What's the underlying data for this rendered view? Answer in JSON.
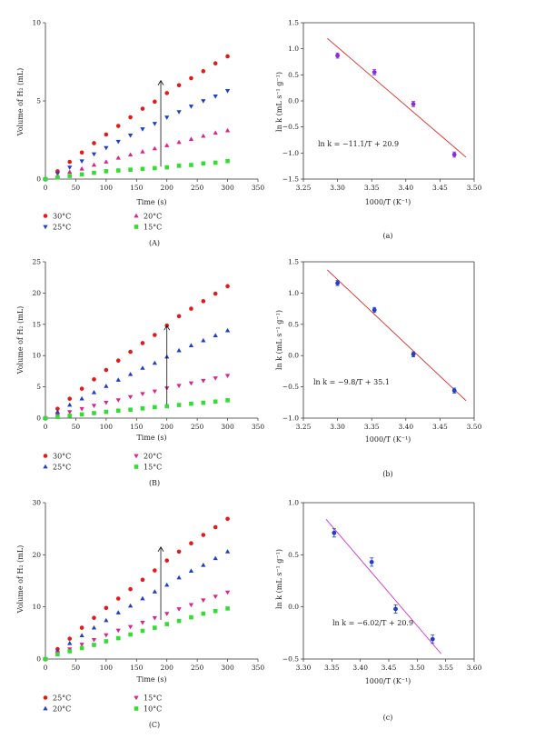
{
  "figure": {
    "panels": [
      {
        "label": "(A)",
        "xlabel": "Time (s)",
        "ylabel": "Volume of H₂ (mL)",
        "xlim": [
          0,
          350
        ],
        "ylim": [
          0,
          10
        ],
        "xticks": [
          "0",
          "50",
          "100",
          "150",
          "200",
          "250",
          "300",
          "350"
        ],
        "yticks": [
          "0",
          "5",
          "10"
        ],
        "arrow": {
          "x": 190,
          "y0": 0.8,
          "y1": 6.3
        }
      },
      {
        "label": "(a)",
        "xlabel": "1000/T (K⁻¹)",
        "ylabel": "ln k (mL s⁻¹ g⁻¹)",
        "equation": "ln k = −11.1/T + 20.9",
        "xlim": [
          3.25,
          3.5
        ],
        "ylim": [
          -1.5,
          1.5
        ],
        "xticks": [
          "3.25",
          "3.30",
          "3.35",
          "3.40",
          "3.45",
          "3.50"
        ],
        "yticks": [
          "−1.5",
          "−1.0",
          "−0.5",
          "0.0",
          "0.5",
          "1.0",
          "1.5"
        ]
      },
      {
        "label": "(B)",
        "xlabel": "Time (s)",
        "ylabel": "Volume of H₂ (mL)",
        "xlim": [
          0,
          350
        ],
        "ylim": [
          0,
          25
        ],
        "xticks": [
          "0",
          "50",
          "100",
          "150",
          "200",
          "250",
          "300",
          "350"
        ],
        "yticks": [
          "0",
          "5",
          "10",
          "15",
          "20",
          "25"
        ],
        "arrow": {
          "x": 200,
          "y0": 2.2,
          "y1": 14.8
        }
      },
      {
        "label": "(b)",
        "xlabel": "1000/T (K⁻¹)",
        "ylabel": "ln k (mL s⁻¹ g⁻¹)",
        "equation": "ln k = −9.8/T + 35.1",
        "xlim": [
          3.25,
          3.5
        ],
        "ylim": [
          -1.0,
          1.5
        ],
        "xticks": [
          "3.25",
          "3.30",
          "3.35",
          "3.40",
          "3.45",
          "3.50"
        ],
        "yticks": [
          "−1.0",
          "−0.5",
          "0.0",
          "0.5",
          "1.0",
          "1.5"
        ]
      },
      {
        "label": "(C)",
        "xlabel": "Time (s)",
        "ylabel": "Volume of H₂ (mL)",
        "xlim": [
          0,
          350
        ],
        "ylim": [
          0,
          30
        ],
        "xticks": [
          "0",
          "50",
          "100",
          "150",
          "200",
          "250",
          "300",
          "350"
        ],
        "yticks": [
          "0",
          "10",
          "20",
          "30"
        ],
        "arrow": {
          "x": 190,
          "y0": 7.5,
          "y1": 21.5
        }
      },
      {
        "label": "(c)",
        "xlabel": "1000/T (K⁻¹)",
        "ylabel": "ln k (mL s⁻¹ g⁻¹)",
        "equation": "ln k = −6.02/T + 20.9",
        "xlim": [
          3.3,
          3.6
        ],
        "ylim": [
          -0.5,
          1.0
        ],
        "xticks": [
          "3.30",
          "3.35",
          "3.40",
          "3.45",
          "3.50",
          "3.55",
          "3.60"
        ],
        "yticks": [
          "−0.5",
          "0.0",
          "0.5",
          "1.0"
        ]
      }
    ]
  },
  "chart_data": [
    {
      "type": "scatter",
      "title": "(A)",
      "xlabel": "Time (s)",
      "ylabel": "Volume of H₂ (mL)",
      "xlim": [
        0,
        350
      ],
      "ylim": [
        0,
        10
      ],
      "legend": "below",
      "x": [
        0,
        20,
        40,
        60,
        80,
        100,
        120,
        140,
        160,
        180,
        200,
        220,
        240,
        260,
        280,
        300
      ],
      "series": [
        {
          "name": "30°C",
          "marker": "circle",
          "color": "#e31a1c",
          "values": [
            0,
            0.5,
            1.1,
            1.7,
            2.3,
            2.85,
            3.4,
            3.95,
            4.5,
            4.95,
            5.5,
            6.0,
            6.45,
            6.9,
            7.4,
            7.85
          ]
        },
        {
          "name": "25°C",
          "marker": "triangle-down",
          "color": "#1f3fc8",
          "values": [
            0,
            0.35,
            0.75,
            1.15,
            1.6,
            2.0,
            2.4,
            2.8,
            3.2,
            3.55,
            3.95,
            4.3,
            4.65,
            5.0,
            5.3,
            5.65
          ]
        },
        {
          "name": "20°C",
          "marker": "triangle-up",
          "color": "#e0218a",
          "values": [
            0,
            0.2,
            0.45,
            0.65,
            0.9,
            1.1,
            1.35,
            1.55,
            1.75,
            1.95,
            2.15,
            2.35,
            2.55,
            2.75,
            2.95,
            3.1
          ]
        },
        {
          "name": "15°C",
          "marker": "square",
          "color": "#33dd33",
          "values": [
            0,
            0.1,
            0.2,
            0.3,
            0.4,
            0.5,
            0.55,
            0.6,
            0.65,
            0.7,
            0.75,
            0.85,
            0.9,
            1.0,
            1.05,
            1.15
          ]
        }
      ]
    },
    {
      "type": "scatter",
      "title": "(a)",
      "xlabel": "1000/T (K⁻¹)",
      "ylabel": "ln k (mL s⁻¹ g⁻¹)",
      "xlim": [
        3.25,
        3.5
      ],
      "ylim": [
        -1.5,
        1.5
      ],
      "annotation": "ln k = −11.1/T + 20.9",
      "points": {
        "x": [
          3.3,
          3.354,
          3.411,
          3.471
        ],
        "y": [
          0.87,
          0.55,
          -0.06,
          -1.03
        ],
        "err": [
          0.05,
          0.05,
          0.05,
          0.05
        ],
        "color": "#8a2be2"
      },
      "fit": {
        "x": [
          3.285,
          3.488
        ],
        "y": [
          1.2,
          -1.08
        ],
        "color": "#d6302a"
      }
    },
    {
      "type": "scatter",
      "title": "(B)",
      "xlabel": "Time (s)",
      "ylabel": "Volume of H₂ (mL)",
      "xlim": [
        0,
        350
      ],
      "ylim": [
        0,
        25
      ],
      "legend": "below",
      "x": [
        0,
        20,
        40,
        60,
        80,
        100,
        120,
        140,
        160,
        180,
        200,
        220,
        240,
        260,
        280,
        300
      ],
      "series": [
        {
          "name": "30°C",
          "marker": "circle",
          "color": "#e31a1c",
          "values": [
            0,
            1.5,
            3.1,
            4.7,
            6.2,
            7.7,
            9.2,
            10.6,
            12.0,
            13.3,
            14.8,
            16.3,
            17.5,
            18.7,
            19.9,
            21.1
          ]
        },
        {
          "name": "25°C",
          "marker": "triangle-up",
          "color": "#1f3fc8",
          "values": [
            0,
            1.0,
            2.1,
            3.1,
            4.1,
            5.1,
            6.1,
            7.0,
            8.0,
            8.8,
            9.8,
            10.8,
            11.6,
            12.4,
            13.2,
            14.0
          ]
        },
        {
          "name": "20°C",
          "marker": "triangle-down",
          "color": "#e0218a",
          "values": [
            0,
            0.5,
            1.0,
            1.5,
            2.0,
            2.5,
            2.9,
            3.4,
            3.9,
            4.3,
            4.8,
            5.2,
            5.6,
            6.0,
            6.4,
            6.8
          ]
        },
        {
          "name": "15°C",
          "marker": "square",
          "color": "#33dd33",
          "values": [
            0,
            0.2,
            0.4,
            0.6,
            0.8,
            1.0,
            1.2,
            1.35,
            1.55,
            1.75,
            1.9,
            2.1,
            2.3,
            2.45,
            2.65,
            2.85
          ]
        }
      ]
    },
    {
      "type": "scatter",
      "title": "(b)",
      "xlabel": "1000/T (K⁻¹)",
      "ylabel": "ln k (mL s⁻¹ g⁻¹)",
      "xlim": [
        3.25,
        3.5
      ],
      "ylim": [
        -1.0,
        1.5
      ],
      "annotation": "ln k = −9.8/T + 35.1",
      "points": {
        "x": [
          3.3,
          3.354,
          3.411,
          3.471
        ],
        "y": [
          1.16,
          0.73,
          0.02,
          -0.56
        ],
        "err": [
          0.04,
          0.04,
          0.04,
          0.04
        ],
        "color": "#1f3fc8"
      },
      "fit": {
        "x": [
          3.285,
          3.488
        ],
        "y": [
          1.37,
          -0.72
        ],
        "color": "#d6302a"
      }
    },
    {
      "type": "scatter",
      "title": "(C)",
      "xlabel": "Time (s)",
      "ylabel": "Volume of H₂ (mL)",
      "xlim": [
        0,
        350
      ],
      "ylim": [
        0,
        30
      ],
      "legend": "below",
      "x": [
        0,
        20,
        40,
        60,
        80,
        100,
        120,
        140,
        160,
        180,
        200,
        220,
        240,
        260,
        280,
        300
      ],
      "series": [
        {
          "name": "25°C",
          "marker": "circle",
          "color": "#e31a1c",
          "values": [
            0,
            1.9,
            3.9,
            6.0,
            7.9,
            9.8,
            11.6,
            13.4,
            15.2,
            17.0,
            18.9,
            20.6,
            22.2,
            23.8,
            25.3,
            26.9
          ]
        },
        {
          "name": "20°C",
          "marker": "triangle-up",
          "color": "#1f3fc8",
          "values": [
            0,
            1.5,
            3.0,
            4.5,
            6.0,
            7.4,
            8.9,
            10.2,
            11.6,
            12.9,
            14.2,
            15.6,
            16.9,
            18.0,
            19.3,
            20.6
          ]
        },
        {
          "name": "15°C",
          "marker": "triangle-down",
          "color": "#e0218a",
          "values": [
            0,
            1.2,
            1.9,
            2.8,
            3.7,
            4.6,
            5.5,
            6.2,
            7.0,
            7.9,
            8.7,
            9.6,
            10.4,
            11.3,
            12.0,
            12.8
          ]
        },
        {
          "name": "10°C",
          "marker": "square",
          "color": "#33dd33",
          "values": [
            0,
            0.9,
            1.5,
            2.1,
            2.7,
            3.4,
            4.0,
            4.7,
            5.4,
            6.0,
            6.7,
            7.3,
            8.0,
            8.7,
            9.2,
            9.7
          ]
        }
      ]
    },
    {
      "type": "scatter",
      "title": "(c)",
      "xlabel": "1000/T (K⁻¹)",
      "ylabel": "ln k (mL s⁻¹ g⁻¹)",
      "xlim": [
        3.3,
        3.6
      ],
      "ylim": [
        -0.5,
        1.0
      ],
      "annotation": "ln k = −6.02/T + 20.9",
      "points": {
        "x": [
          3.354,
          3.42,
          3.462,
          3.527
        ],
        "y": [
          0.71,
          0.43,
          -0.02,
          -0.31
        ],
        "err": [
          0.04,
          0.04,
          0.04,
          0.04
        ],
        "color": "#1f3fc8"
      },
      "fit": {
        "x": [
          3.34,
          3.542
        ],
        "y": [
          0.84,
          -0.45
        ],
        "color": "#cc33cc"
      }
    }
  ]
}
